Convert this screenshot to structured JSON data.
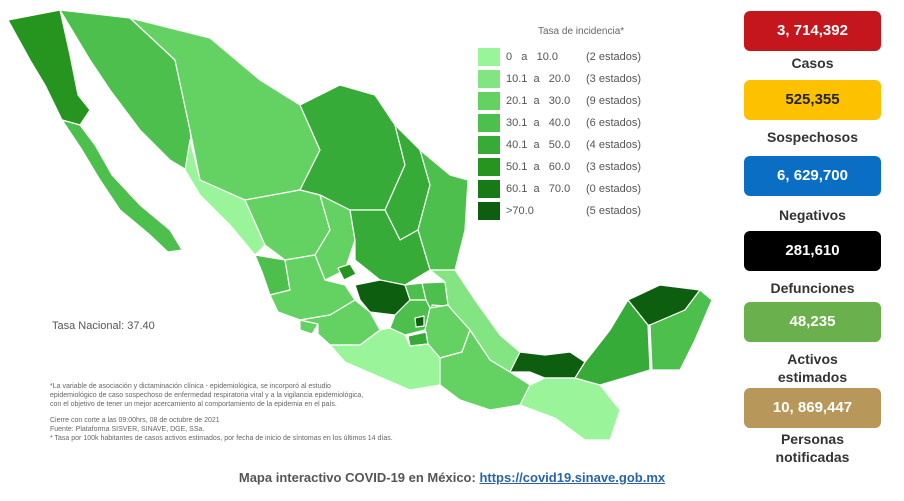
{
  "legend": {
    "title": "Tasa de incidencia*",
    "rows": [
      {
        "range": "0   a   10.0",
        "count": "(2 estados)",
        "color": "#9af59a"
      },
      {
        "range": "10.1  a   20.0",
        "count": "(3 estados)",
        "color": "#82e582"
      },
      {
        "range": "20.1  a   30.0",
        "count": "(9 estados)",
        "color": "#63d263"
      },
      {
        "range": "30.1  a   40.0",
        "count": "(6 estados)",
        "color": "#4cbf4c"
      },
      {
        "range": "40.1  a   50.0",
        "count": "(4 estados)",
        "color": "#37ab37"
      },
      {
        "range": "50.1  a   60.0",
        "count": "(3 estados)",
        "color": "#26951f"
      },
      {
        "range": "60.1  a   70.0",
        "count": "(0 estados)",
        "color": "#177a17"
      },
      {
        "range": ">70.0",
        "count": "(5 estados)",
        "color": "#0e5e10"
      }
    ]
  },
  "tasa_nacional": "Tasa Nacional: 37.40",
  "notes": {
    "line1": "*La variable de asociación y dictaminación clínica - epidemiológica, se incorporó al estudio",
    "line2": "epidemiológico de caso sospechoso de enfermedad respiratoria viral y a la vigilancia epidemiológica,",
    "line3": "con el objetivo de tener un mejor acercamiento al comportamiento de la epidemia en el país.",
    "line4": "Cierre con corte a las 09:00hrs, 08 de octubre de 2021",
    "line5": "Fuente: Plataforma SISVER, SINAVE, DGE, SSa.",
    "line6": "* Tasa por 100k habitantes de casos activos estimados, por fecha de inicio de síntomas en los últimos 14 días."
  },
  "footer": {
    "text": "Mapa interactivo COVID-19 en México: ",
    "link": "https://covid19.sinave.gob.mx"
  },
  "stats": [
    {
      "value": "3, 714,392",
      "label": "Casos",
      "color": "#c5161d"
    },
    {
      "value": "525,355",
      "label": "Sospechosos",
      "color": "#fdc100"
    },
    {
      "value": "6, 629,700",
      "label": "Negativos",
      "color": "#0a6ec4"
    },
    {
      "value": "281,610",
      "label": "Defunciones",
      "color": "#000000"
    },
    {
      "value": "48,235",
      "label_line1": "Activos",
      "label_line2": "estimados",
      "color": "#6ab04c"
    },
    {
      "value": "10, 869,447",
      "label_line1": "Personas",
      "label_line2": "notificadas",
      "color": "#b8975a"
    }
  ],
  "palette": {
    "l1": "#9af59a",
    "l2": "#82e582",
    "l3": "#63d263",
    "l4": "#4cbf4c",
    "l5": "#37ab37",
    "l6": "#26951f",
    "l8": "#0e5e10"
  }
}
